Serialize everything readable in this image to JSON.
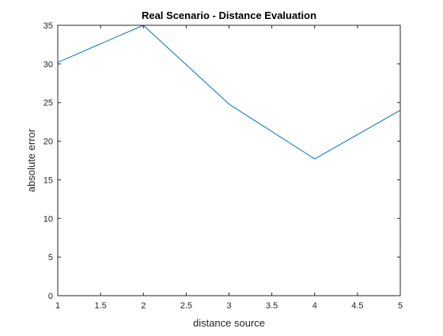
{
  "chart_data": {
    "type": "line",
    "title": "Real Scenario - Distance Evaluation",
    "xlabel": "distance source",
    "ylabel": "absolute error",
    "xlim": [
      1,
      5
    ],
    "ylim": [
      0,
      35
    ],
    "xticks": [
      "1",
      "1.5",
      "2",
      "2.5",
      "3",
      "3.5",
      "4",
      "4.5",
      "5"
    ],
    "yticks": [
      "0",
      "5",
      "10",
      "15",
      "20",
      "25",
      "30",
      "35"
    ],
    "grid": false,
    "series": [
      {
        "x": [
          1,
          2,
          3,
          4,
          5
        ],
        "values": [
          30.2,
          35.0,
          24.8,
          17.7,
          24.0
        ],
        "color": "#0072BD"
      }
    ],
    "axes_color": "#262626"
  }
}
